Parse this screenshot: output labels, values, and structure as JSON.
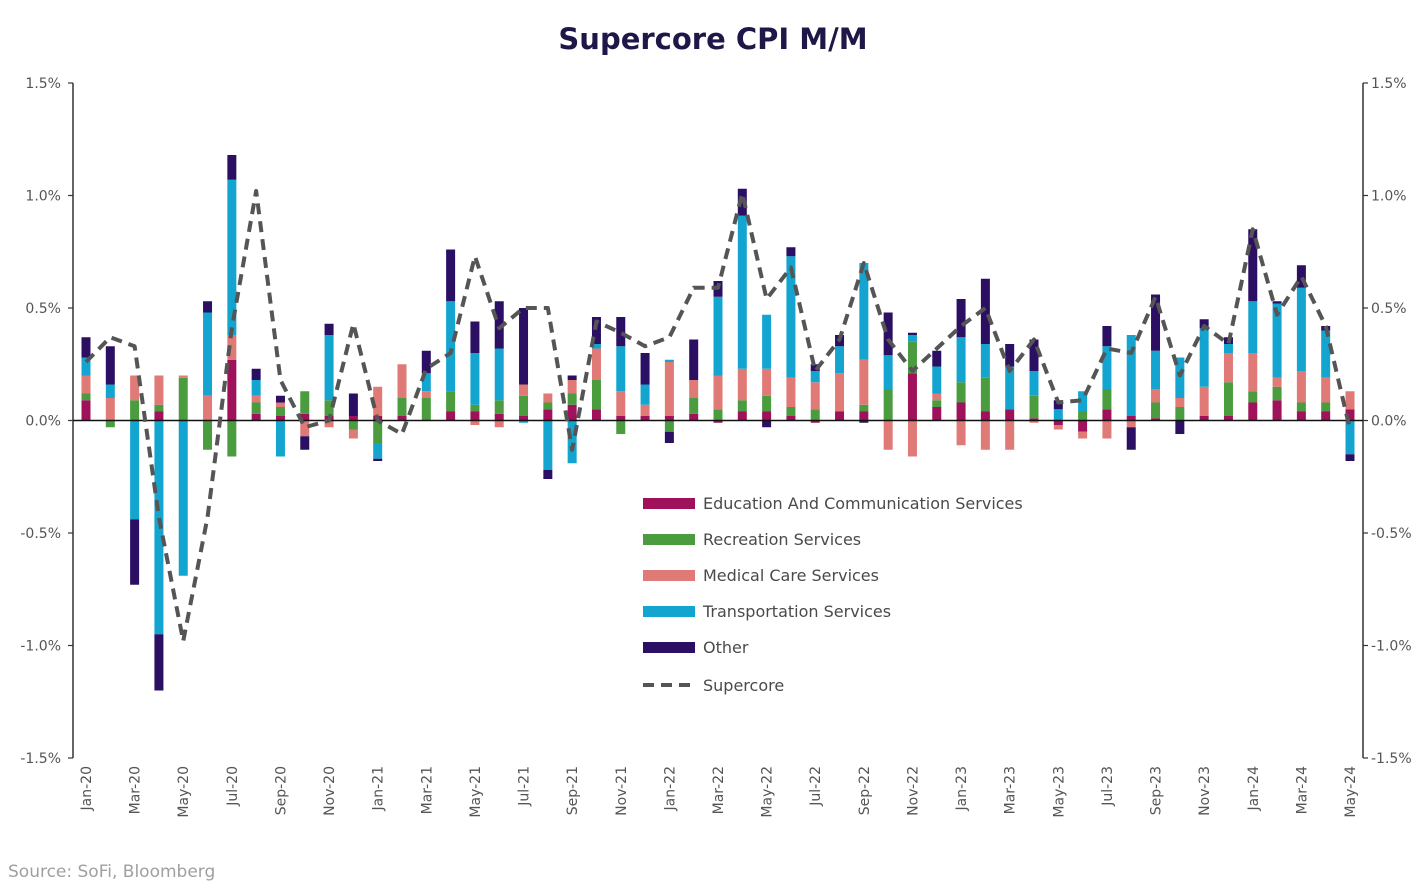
{
  "chart_data": {
    "type": "bar",
    "stacked": true,
    "title": "Supercore CPI M/M",
    "source": "Source: SoFi, Bloomberg",
    "ylim": [
      -1.5,
      1.5
    ],
    "y_ticks": [
      "-1.5%",
      "-1.0%",
      "-0.5%",
      "0.0%",
      "0.5%",
      "1.0%",
      "1.5%"
    ],
    "y_tick_values": [
      -1.5,
      -1.0,
      -0.5,
      0.0,
      0.5,
      1.0,
      1.5
    ],
    "x_tick_labels": [
      "Jan-20",
      "Mar-20",
      "May-20",
      "Jul-20",
      "Sep-20",
      "Nov-20",
      "Jan-21",
      "Mar-21",
      "May-21",
      "Jul-21",
      "Sep-21",
      "Nov-21",
      "Jan-22",
      "Mar-22",
      "May-22",
      "Jul-22",
      "Sep-22",
      "Nov-22",
      "Jan-23",
      "Mar-23",
      "May-23",
      "Jul-23",
      "Sep-23",
      "Nov-23",
      "Jan-24",
      "Mar-24",
      "May-24"
    ],
    "categories": [
      "Jan-20",
      "Feb-20",
      "Mar-20",
      "Apr-20",
      "May-20",
      "Jun-20",
      "Jul-20",
      "Aug-20",
      "Sep-20",
      "Oct-20",
      "Nov-20",
      "Dec-20",
      "Jan-21",
      "Feb-21",
      "Mar-21",
      "Apr-21",
      "May-21",
      "Jun-21",
      "Jul-21",
      "Aug-21",
      "Sep-21",
      "Oct-21",
      "Nov-21",
      "Dec-21",
      "Jan-22",
      "Feb-22",
      "Mar-22",
      "Apr-22",
      "May-22",
      "Jun-22",
      "Jul-22",
      "Aug-22",
      "Sep-22",
      "Oct-22",
      "Nov-22",
      "Dec-22",
      "Jan-23",
      "Feb-23",
      "Mar-23",
      "Apr-23",
      "May-23",
      "Jun-23",
      "Jul-23",
      "Aug-23",
      "Sep-23",
      "Oct-23",
      "Nov-23",
      "Dec-23",
      "Jan-24",
      "Feb-24",
      "Mar-24",
      "Apr-24",
      "May-24"
    ],
    "series": [
      {
        "name": "Education And Communication Services",
        "color": "#a0115b",
        "values": [
          0.09,
          0.0,
          0.0,
          0.04,
          0.0,
          0.0,
          0.27,
          0.03,
          0.02,
          0.03,
          0.02,
          0.02,
          0.02,
          0.02,
          0.0,
          0.04,
          0.04,
          0.03,
          0.02,
          0.05,
          0.07,
          0.05,
          0.02,
          0.02,
          0.02,
          0.03,
          -0.01,
          0.04,
          0.04,
          0.02,
          -0.01,
          0.04,
          0.04,
          0.0,
          0.21,
          0.06,
          0.08,
          0.04,
          0.05,
          0.01,
          -0.02,
          -0.05,
          0.05,
          0.02,
          0.01,
          0.0,
          0.02,
          0.02,
          0.08,
          0.09,
          0.04,
          0.04,
          0.05
        ]
      },
      {
        "name": "Recreation Services",
        "color": "#4a9c3e",
        "values": [
          0.03,
          -0.03,
          0.09,
          0.03,
          0.19,
          -0.13,
          -0.16,
          0.05,
          0.04,
          0.1,
          0.07,
          -0.04,
          -0.1,
          0.08,
          0.1,
          0.09,
          0.03,
          0.06,
          0.09,
          0.03,
          0.05,
          0.13,
          -0.06,
          0.0,
          -0.05,
          0.07,
          0.05,
          0.05,
          0.07,
          0.04,
          0.05,
          0.0,
          0.03,
          0.14,
          0.14,
          0.03,
          0.09,
          0.15,
          0.0,
          0.1,
          0.0,
          0.04,
          0.09,
          0.0,
          0.07,
          0.06,
          0.0,
          0.15,
          0.05,
          0.06,
          0.04,
          0.04,
          0.0
        ]
      },
      {
        "name": "Medical Care Services",
        "color": "#e07a76",
        "values": [
          0.08,
          0.1,
          0.11,
          0.13,
          0.01,
          0.11,
          0.11,
          0.03,
          0.02,
          -0.07,
          -0.03,
          -0.04,
          0.13,
          0.15,
          0.03,
          0.0,
          -0.02,
          -0.03,
          0.05,
          0.04,
          0.06,
          0.14,
          0.11,
          0.05,
          0.24,
          0.08,
          0.15,
          0.14,
          0.12,
          0.13,
          0.12,
          0.17,
          0.2,
          -0.13,
          -0.16,
          0.03,
          -0.11,
          -0.13,
          -0.13,
          -0.01,
          -0.02,
          -0.03,
          -0.08,
          -0.03,
          0.06,
          0.04,
          0.13,
          0.13,
          0.17,
          0.04,
          0.14,
          0.11,
          0.08
        ]
      },
      {
        "name": "Transportation Services",
        "color": "#13a5cf",
        "values": [
          0.08,
          0.06,
          -0.44,
          -0.95,
          -0.69,
          0.37,
          0.69,
          0.07,
          -0.16,
          0.0,
          0.29,
          0.0,
          -0.07,
          0.0,
          0.08,
          0.4,
          0.23,
          0.23,
          -0.01,
          -0.22,
          -0.19,
          0.02,
          0.2,
          0.09,
          0.01,
          0.0,
          0.35,
          0.68,
          0.24,
          0.54,
          0.05,
          0.12,
          0.43,
          0.15,
          0.03,
          0.12,
          0.2,
          0.15,
          0.19,
          0.11,
          0.05,
          0.09,
          0.19,
          0.36,
          0.17,
          0.18,
          0.26,
          0.04,
          0.23,
          0.33,
          0.37,
          0.21,
          -0.15
        ]
      },
      {
        "name": "Other",
        "color": "#2b0f62",
        "values": [
          0.09,
          0.17,
          -0.29,
          -0.25,
          0.0,
          0.05,
          0.11,
          0.05,
          0.03,
          -0.06,
          0.05,
          0.1,
          -0.01,
          0.0,
          0.1,
          0.23,
          0.14,
          0.21,
          0.34,
          -0.04,
          0.02,
          0.12,
          0.13,
          0.14,
          -0.05,
          0.18,
          0.07,
          0.12,
          -0.03,
          0.04,
          0.03,
          0.05,
          -0.01,
          0.19,
          0.01,
          0.07,
          0.17,
          0.29,
          0.1,
          0.14,
          0.04,
          0.0,
          0.09,
          -0.1,
          0.25,
          -0.06,
          0.04,
          0.03,
          0.32,
          0.01,
          0.1,
          0.02,
          -0.03
        ]
      }
    ],
    "line_series": {
      "name": "Supercore",
      "color": "#555555",
      "style": "dashed",
      "values": [
        0.26,
        0.37,
        0.33,
        -0.43,
        -0.98,
        -0.43,
        0.41,
        1.02,
        0.18,
        -0.03,
        0.0,
        0.43,
        0.0,
        -0.06,
        0.23,
        0.3,
        0.73,
        0.41,
        0.5,
        0.5,
        -0.13,
        0.44,
        0.39,
        0.33,
        0.37,
        0.59,
        0.59,
        1.01,
        0.54,
        0.68,
        0.22,
        0.36,
        0.7,
        0.36,
        0.22,
        0.32,
        0.42,
        0.5,
        0.22,
        0.36,
        0.08,
        0.09,
        0.32,
        0.3,
        0.55,
        0.2,
        0.42,
        0.34,
        0.85,
        0.47,
        0.64,
        0.42,
        -0.04
      ]
    },
    "legend": [
      "Education And Communication Services",
      "Recreation Services",
      "Medical Care Services",
      "Transportation Services",
      "Other",
      "Supercore"
    ],
    "legend_position": "center-right inside plot"
  }
}
